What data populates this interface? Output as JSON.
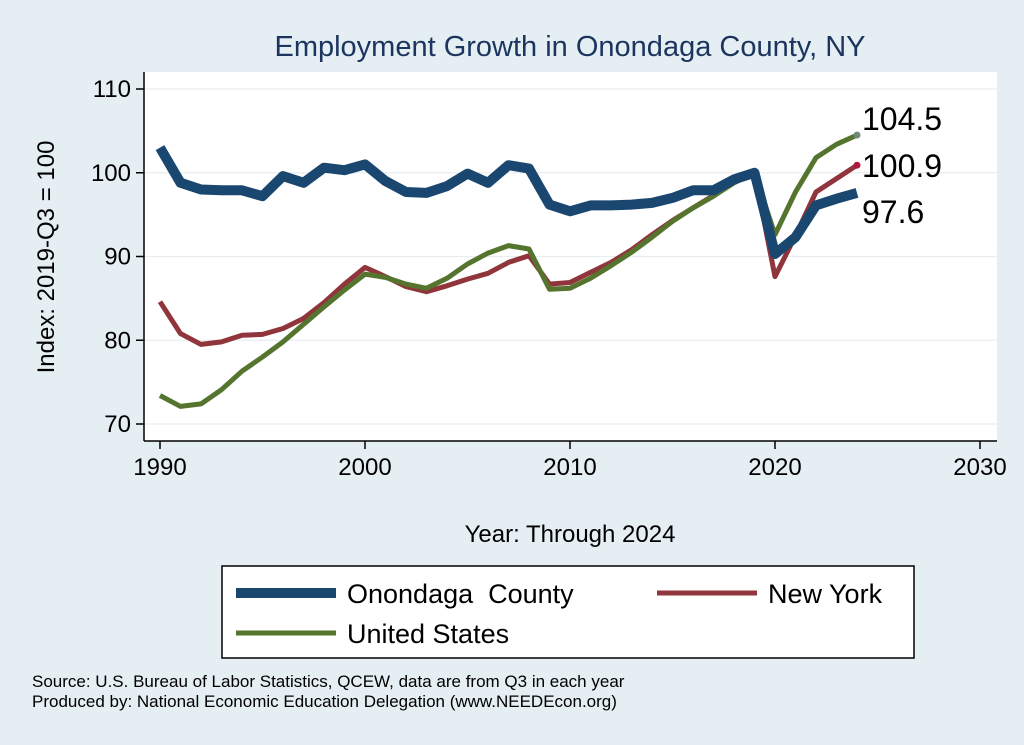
{
  "chart_data": {
    "type": "line",
    "title": "Employment Growth in Onondaga County, NY",
    "xlabel": "Year: Through 2024",
    "ylabel": "Index: 2019-Q3 = 100",
    "xlim": [
      1990,
      2030
    ],
    "ylim": [
      68,
      112
    ],
    "x_ticks": [
      "1990",
      "2000",
      "2010",
      "2020",
      "2030"
    ],
    "y_ticks": [
      "70",
      "80",
      "90",
      "100",
      "110"
    ],
    "grid": true,
    "legend_position": "bottom",
    "x": [
      1990,
      1991,
      1992,
      1993,
      1994,
      1995,
      1996,
      1997,
      1998,
      1999,
      2000,
      2001,
      2002,
      2003,
      2004,
      2005,
      2006,
      2007,
      2008,
      2009,
      2010,
      2011,
      2012,
      2013,
      2014,
      2015,
      2016,
      2017,
      2018,
      2019,
      2020,
      2021,
      2022,
      2023,
      2024
    ],
    "series": [
      {
        "name": "Onondaga  County",
        "color": "#1a476f",
        "end_label": "97.6",
        "values": [
          103,
          98.8,
          98,
          97.9,
          97.9,
          97.2,
          99.6,
          98.8,
          100.6,
          100.3,
          101,
          99,
          97.7,
          97.6,
          98.4,
          99.9,
          98.8,
          100.9,
          100.5,
          96.2,
          95.4,
          96.1,
          96.1,
          96.2,
          96.4,
          97,
          97.9,
          97.9,
          99.2,
          100,
          90.3,
          92.3,
          96.1,
          96.9,
          97.6
        ]
      },
      {
        "name": "New York",
        "color": "#90353b",
        "end_label": "100.9",
        "values": [
          84.6,
          80.8,
          79.5,
          79.8,
          80.6,
          80.7,
          81.4,
          82.6,
          84.5,
          86.7,
          88.7,
          87.6,
          86.4,
          85.8,
          86.5,
          87.3,
          88,
          89.3,
          90.1,
          86.7,
          86.9,
          88.1,
          89.3,
          90.8,
          92.6,
          94.3,
          95.8,
          97.3,
          98.8,
          100,
          87.6,
          92.5,
          97.7,
          99.3,
          100.9
        ]
      },
      {
        "name": "United States",
        "color": "#55752f",
        "end_label": "104.5",
        "values": [
          73.4,
          72.1,
          72.4,
          74.1,
          76.3,
          78,
          79.8,
          81.9,
          84,
          86,
          87.9,
          87.5,
          86.7,
          86.2,
          87.4,
          89.1,
          90.4,
          91.3,
          90.9,
          86.1,
          86.2,
          87.4,
          88.9,
          90.5,
          92.3,
          94.2,
          95.8,
          97.2,
          98.8,
          100,
          92.6,
          97.7,
          101.8,
          103.4,
          104.5
        ]
      }
    ],
    "legend": [
      {
        "label": "Onondaga  County",
        "color": "#1a476f"
      },
      {
        "label": "New York",
        "color": "#90353b"
      },
      {
        "label": "United States",
        "color": "#55752f"
      }
    ]
  },
  "notes": {
    "source": "Source: U.S. Bureau of Labor Statistics, QCEW, data are from Q3 in each year",
    "producer": "Produced by: National Economic Education Delegation (www.NEEDEcon.org)"
  }
}
